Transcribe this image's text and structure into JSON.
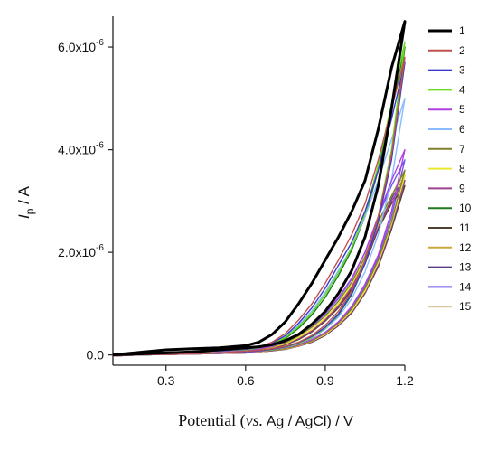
{
  "chart_data": {
    "type": "line",
    "title": "",
    "xlabel": {
      "prefix": "Potential (",
      "italic": "vs.",
      "suffix": " Ag / AgCl) / V"
    },
    "ylabel": {
      "main": "I",
      "sub": "p",
      "suffix": " / A"
    },
    "xlim": [
      0.1,
      1.2
    ],
    "ylim": [
      -2e-07,
      6.6e-06
    ],
    "x_ticks": [
      {
        "value": 0.3,
        "label": "0.3"
      },
      {
        "value": 0.6,
        "label": "0.6"
      },
      {
        "value": 0.9,
        "label": "0.9"
      },
      {
        "value": 1.2,
        "label": "1.2"
      }
    ],
    "y_ticks": [
      {
        "value": 0,
        "label": "0.0",
        "exp": ""
      },
      {
        "value": 2e-06,
        "label": "2.0x10",
        "exp": "-6"
      },
      {
        "value": 4e-06,
        "label": "4.0x10",
        "exp": "-6"
      },
      {
        "value": 6e-06,
        "label": "6.0x10",
        "exp": "-6"
      }
    ],
    "grid": false,
    "legend_position": "right",
    "x_forward": [
      0.1,
      0.2,
      0.3,
      0.4,
      0.5,
      0.6,
      0.65,
      0.7,
      0.75,
      0.8,
      0.85,
      0.9,
      0.95,
      1.0,
      1.05,
      1.1,
      1.15,
      1.2
    ],
    "x_reverse": [
      1.2,
      1.15,
      1.1,
      1.05,
      1.0,
      0.95,
      0.9,
      0.85,
      0.8,
      0.75,
      0.7,
      0.65,
      0.6,
      0.5,
      0.4,
      0.3,
      0.2,
      0.1
    ],
    "series": [
      {
        "name": "1",
        "color": "#000000",
        "width": 3.0,
        "forward": [
          0.0,
          5e-08,
          1e-07,
          1.2e-07,
          1.4e-07,
          1.8e-07,
          2.5e-07,
          4e-07,
          6.5e-07,
          1e-06,
          1.4e-06,
          1.85e-06,
          2.3e-06,
          2.8e-06,
          3.4e-06,
          4.4e-06,
          5.6e-06,
          6.5e-06
        ],
        "reverse": [
          6.5e-06,
          4.8e-06,
          3.3e-06,
          2.3e-06,
          1.65e-06,
          1.2e-06,
          8.5e-07,
          6e-07,
          4e-07,
          2.8e-07,
          2e-07,
          1.6e-07,
          1.4e-07,
          1e-07,
          6e-08,
          4e-08,
          2e-08,
          0.0
        ]
      },
      {
        "name": "2",
        "color": "#c0504d",
        "width": 1.4,
        "forward": [
          0.0,
          2e-08,
          5e-08,
          7e-08,
          9e-08,
          1.2e-07,
          1.6e-07,
          2.5e-07,
          4.2e-07,
          6.8e-07,
          1e-06,
          1.4e-06,
          1.85e-06,
          2.35e-06,
          2.95e-06,
          3.8e-06,
          4.8e-06,
          5.8e-06
        ],
        "reverse": [
          5.8e-06,
          3.9e-06,
          2.7e-06,
          1.85e-06,
          1.25e-06,
          8.5e-07,
          5.8e-07,
          3.8e-07,
          2.5e-07,
          1.7e-07,
          1.2e-07,
          9e-08,
          7e-08,
          4e-08,
          2e-08,
          1e-08,
          0.0,
          -2e-08
        ]
      },
      {
        "name": "3",
        "color": "#3a3acf",
        "width": 1.4,
        "forward": [
          0.0,
          2e-08,
          4e-08,
          6e-08,
          8e-08,
          1.1e-07,
          1.5e-07,
          2.3e-07,
          3.8e-07,
          6.2e-07,
          9.2e-07,
          1.3e-06,
          1.75e-06,
          2.2e-06,
          2.8e-06,
          3.6e-06,
          4.6e-06,
          5.7e-06
        ],
        "reverse": [
          5.7e-06,
          3.8e-06,
          2.6e-06,
          1.78e-06,
          1.2e-06,
          8e-07,
          5.4e-07,
          3.6e-07,
          2.4e-07,
          1.6e-07,
          1.1e-07,
          8e-08,
          6e-08,
          4e-08,
          2e-08,
          1e-08,
          0.0,
          -2e-08
        ]
      },
      {
        "name": "4",
        "color": "#66dd22",
        "width": 1.4,
        "forward": [
          0.0,
          2e-08,
          4e-08,
          6e-08,
          8e-08,
          1e-07,
          1.4e-07,
          2.1e-07,
          3.4e-07,
          5.5e-07,
          8.2e-07,
          1.18e-06,
          1.6e-06,
          2.1e-06,
          2.75e-06,
          3.7e-06,
          4.9e-06,
          6.1e-06
        ],
        "reverse": [
          6.1e-06,
          4e-06,
          2.7e-06,
          1.8e-06,
          1.2e-06,
          8e-07,
          5.2e-07,
          3.4e-07,
          2.2e-07,
          1.5e-07,
          1e-07,
          8e-08,
          6e-08,
          4e-08,
          2e-08,
          1e-08,
          0.0,
          -2e-08
        ]
      },
      {
        "name": "5",
        "color": "#b040e0",
        "width": 1.4,
        "forward": [
          0.0,
          2e-08,
          4e-08,
          6e-08,
          7e-08,
          9e-08,
          1.2e-07,
          1.7e-07,
          2.6e-07,
          4e-07,
          5.8e-07,
          8.2e-07,
          1.12e-06,
          1.5e-06,
          2e-06,
          2.7e-06,
          3.4e-06,
          4e-06
        ],
        "reverse": [
          4e-06,
          2.8e-06,
          1.95e-06,
          1.38e-06,
          9.5e-07,
          6.5e-07,
          4.4e-07,
          3e-07,
          2e-07,
          1.4e-07,
          1e-07,
          7e-08,
          5e-08,
          3e-08,
          2e-08,
          1e-08,
          0.0,
          -2e-08
        ]
      },
      {
        "name": "6",
        "color": "#88bbff",
        "width": 1.4,
        "forward": [
          0.0,
          2e-08,
          4e-08,
          6e-08,
          8e-08,
          1e-07,
          1.4e-07,
          2.2e-07,
          3.6e-07,
          5.8e-07,
          8.6e-07,
          1.22e-06,
          1.65e-06,
          2.1e-06,
          2.7e-06,
          3.4e-06,
          4.2e-06,
          5e-06
        ],
        "reverse": [
          5e-06,
          3.4e-06,
          2.35e-06,
          1.62e-06,
          1.1e-06,
          7.4e-07,
          5e-07,
          3.3e-07,
          2.2e-07,
          1.5e-07,
          1e-07,
          8e-08,
          6e-08,
          4e-08,
          2e-08,
          1e-08,
          0.0,
          -2e-08
        ]
      },
      {
        "name": "7",
        "color": "#808030",
        "width": 1.4,
        "forward": [
          0.0,
          2e-08,
          4e-08,
          5e-08,
          7e-08,
          9e-08,
          1.1e-07,
          1.6e-07,
          2.4e-07,
          3.7e-07,
          5.4e-07,
          7.6e-07,
          1.05e-06,
          1.42e-06,
          1.92e-06,
          2.6e-06,
          3.1e-06,
          3.6e-06
        ],
        "reverse": [
          3.6e-06,
          2.6e-06,
          1.85e-06,
          1.3e-06,
          9e-07,
          6.2e-07,
          4.2e-07,
          2.8e-07,
          1.9e-07,
          1.3e-07,
          9e-08,
          7e-08,
          5e-08,
          3e-08,
          2e-08,
          1e-08,
          0.0,
          -2e-08
        ]
      },
      {
        "name": "8",
        "color": "#e8e830",
        "width": 1.4,
        "forward": [
          0.0,
          2e-08,
          3e-08,
          5e-08,
          6e-08,
          8e-08,
          1e-07,
          1.5e-07,
          2.2e-07,
          3.4e-07,
          5e-07,
          7.2e-07,
          1e-06,
          1.38e-06,
          1.88e-06,
          2.55e-06,
          3.1e-06,
          3.5e-06
        ],
        "reverse": [
          3.5e-06,
          2.55e-06,
          1.8e-06,
          1.25e-06,
          8.6e-07,
          6e-07,
          4e-07,
          2.7e-07,
          1.8e-07,
          1.2e-07,
          9e-08,
          6e-08,
          5e-08,
          3e-08,
          2e-08,
          1e-08,
          0.0,
          -2e-08
        ]
      },
      {
        "name": "9",
        "color": "#a04090",
        "width": 1.4,
        "forward": [
          0.0,
          2e-08,
          3e-08,
          5e-08,
          6e-08,
          8e-08,
          1e-07,
          1.4e-07,
          2.1e-07,
          3.2e-07,
          4.7e-07,
          6.8e-07,
          9.5e-07,
          1.32e-06,
          1.82e-06,
          2.5e-06,
          3e-06,
          3.4e-06
        ],
        "reverse": [
          3.4e-06,
          2.5e-06,
          1.75e-06,
          1.22e-06,
          8.4e-07,
          5.8e-07,
          3.9e-07,
          2.6e-07,
          1.7e-07,
          1.2e-07,
          8e-08,
          6e-08,
          4e-08,
          3e-08,
          2e-08,
          1e-08,
          0.0,
          -2e-08
        ]
      },
      {
        "name": "10",
        "color": "#1f7a1f",
        "width": 1.4,
        "forward": [
          0.0,
          2e-08,
          4e-08,
          6e-08,
          8e-08,
          1e-07,
          1.3e-07,
          2e-07,
          3.2e-07,
          5.2e-07,
          7.8e-07,
          1.12e-06,
          1.55e-06,
          2.05e-06,
          2.7e-06,
          3.6e-06,
          4.8e-06,
          6e-06
        ],
        "reverse": [
          6e-06,
          3.95e-06,
          2.65e-06,
          1.78e-06,
          1.18e-06,
          7.8e-07,
          5.1e-07,
          3.3e-07,
          2.2e-07,
          1.5e-07,
          1e-07,
          7e-08,
          5e-08,
          3e-08,
          2e-08,
          1e-08,
          0.0,
          -2e-08
        ]
      },
      {
        "name": "11",
        "color": "#504030",
        "width": 1.4,
        "forward": [
          0.0,
          2e-08,
          3e-08,
          5e-08,
          6e-08,
          7e-08,
          9e-08,
          1.3e-07,
          2e-07,
          3e-07,
          4.5e-07,
          6.6e-07,
          9.2e-07,
          1.28e-06,
          1.78e-06,
          2.45e-06,
          2.95e-06,
          3.3e-06
        ],
        "reverse": [
          3.3e-06,
          2.45e-06,
          1.72e-06,
          1.2e-06,
          8.2e-07,
          5.7e-07,
          3.8e-07,
          2.5e-07,
          1.7e-07,
          1.1e-07,
          8e-08,
          6e-08,
          4e-08,
          3e-08,
          2e-08,
          1e-08,
          0.0,
          -2e-08
        ]
      },
      {
        "name": "12",
        "color": "#c8a838",
        "width": 1.4,
        "forward": [
          0.0,
          2e-08,
          3e-08,
          5e-08,
          6e-08,
          8e-08,
          1e-07,
          1.4e-07,
          2.2e-07,
          3.3e-07,
          4.9e-07,
          7e-07,
          9.8e-07,
          1.35e-06,
          1.86e-06,
          2.55e-06,
          3.1e-06,
          3.6e-06
        ],
        "reverse": [
          3.6e-06,
          2.55e-06,
          1.8e-06,
          1.25e-06,
          8.6e-07,
          6e-07,
          4e-07,
          2.7e-07,
          1.8e-07,
          1.2e-07,
          9e-08,
          6e-08,
          5e-08,
          3e-08,
          2e-08,
          1e-08,
          0.0,
          -2e-08
        ]
      },
      {
        "name": "13",
        "color": "#5a3a8a",
        "width": 1.4,
        "forward": [
          0.0,
          2e-08,
          3e-08,
          5e-08,
          6e-08,
          8e-08,
          1e-07,
          1.4e-07,
          2.1e-07,
          3.2e-07,
          4.8e-07,
          6.9e-07,
          9.6e-07,
          1.33e-06,
          1.84e-06,
          2.52e-06,
          3.05e-06,
          3.5e-06
        ],
        "reverse": [
          3.5e-06,
          2.52e-06,
          1.78e-06,
          1.24e-06,
          8.5e-07,
          5.9e-07,
          3.9e-07,
          2.6e-07,
          1.8e-07,
          1.2e-07,
          8e-08,
          6e-08,
          4e-08,
          3e-08,
          2e-08,
          1e-08,
          0.0,
          -2e-08
        ]
      },
      {
        "name": "14",
        "color": "#6a5aee",
        "width": 1.4,
        "forward": [
          0.0,
          2e-08,
          4e-08,
          5e-08,
          7e-08,
          9e-08,
          1.1e-07,
          1.6e-07,
          2.5e-07,
          3.8e-07,
          5.6e-07,
          8e-07,
          1.1e-06,
          1.48e-06,
          2e-06,
          2.7e-06,
          3.3e-06,
          3.8e-06
        ],
        "reverse": [
          3.8e-06,
          2.7e-06,
          1.9e-06,
          1.33e-06,
          9.2e-07,
          6.3e-07,
          4.3e-07,
          2.9e-07,
          1.9e-07,
          1.3e-07,
          9e-08,
          7e-08,
          5e-08,
          3e-08,
          2e-08,
          1e-08,
          0.0,
          -2e-08
        ]
      },
      {
        "name": "15",
        "color": "#d8c8a0",
        "width": 1.4,
        "forward": [
          0.0,
          2e-08,
          3e-08,
          5e-08,
          6e-08,
          8e-08,
          1e-07,
          1.4e-07,
          2.1e-07,
          3.2e-07,
          4.7e-07,
          6.8e-07,
          9.5e-07,
          1.3e-06,
          1.8e-06,
          2.48e-06,
          3e-06,
          3.4e-06
        ],
        "reverse": [
          3.4e-06,
          2.48e-06,
          1.75e-06,
          1.22e-06,
          8.4e-07,
          5.8e-07,
          3.9e-07,
          2.6e-07,
          1.7e-07,
          1.2e-07,
          8e-08,
          6e-08,
          4e-08,
          3e-08,
          2e-08,
          1e-08,
          0.0,
          -2e-08
        ]
      }
    ]
  }
}
